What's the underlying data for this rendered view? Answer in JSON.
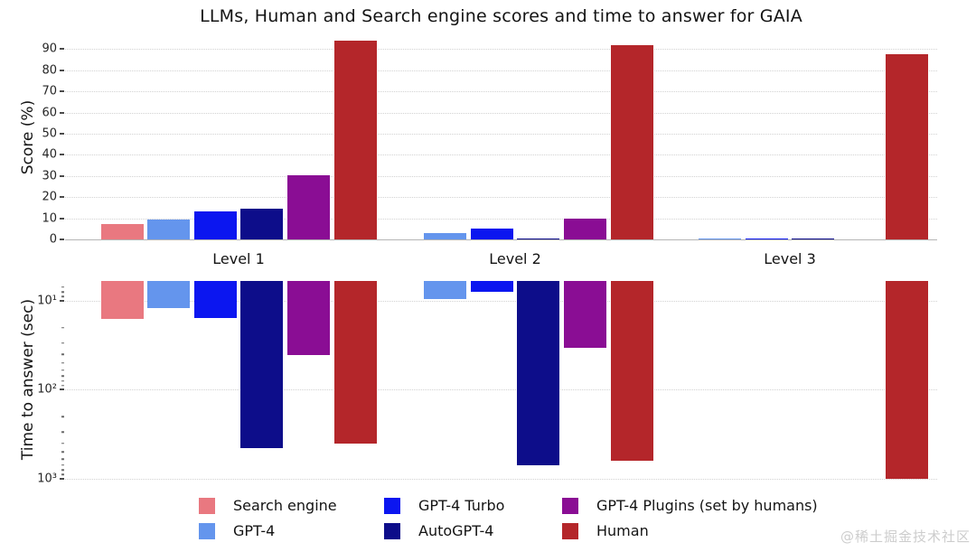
{
  "title": "LLMs, Human and Search engine scores and time to answer for GAIA",
  "watermark": {
    "text": "@稀土掘金技术社区"
  },
  "chart_data": [
    {
      "type": "bar",
      "title": "LLMs, Human and Search engine scores and time to answer for GAIA",
      "ylabel": "Score (%)",
      "xlabel": "",
      "categories": [
        "Level 1",
        "Level 2",
        "Level 3"
      ],
      "ylim": [
        0,
        97
      ],
      "yticks": [
        0,
        10,
        20,
        30,
        40,
        50,
        60,
        70,
        80,
        90
      ],
      "grid": true,
      "series": [
        {
          "name": "Search engine",
          "color": "#e97880",
          "values": [
            7.4,
            0,
            0
          ]
        },
        {
          "name": "GPT-4",
          "color": "#6495ed",
          "values": [
            9.3,
            3.1,
            0.3
          ]
        },
        {
          "name": "GPT-4 Turbo",
          "color": "#0b16f0",
          "values": [
            13.2,
            5.3,
            0.3
          ]
        },
        {
          "name": "AutoGPT-4",
          "color": "#0d0d8a",
          "values": [
            14.4,
            0.5,
            0.3
          ]
        },
        {
          "name": "GPT-4 Plugins (set by humans)",
          "color": "#8a0d94",
          "values": [
            30.3,
            9.7,
            0
          ]
        },
        {
          "name": "Human",
          "color": "#b4262a",
          "values": [
            94,
            92,
            87.5
          ]
        }
      ]
    },
    {
      "type": "bar",
      "title": "",
      "ylabel": "Time to answer (sec)",
      "xlabel": "",
      "categories": [
        "Level 1",
        "Level 2",
        "Level 3"
      ],
      "yscale": "log-inverted",
      "ylim": [
        6,
        1000
      ],
      "yticks": [
        {
          "value": 10,
          "label": "10¹"
        },
        {
          "value": 100,
          "label": "10²"
        },
        {
          "value": 1000,
          "label": "10³"
        }
      ],
      "grid": true,
      "series": [
        {
          "name": "Search engine",
          "color": "#e97880",
          "values": [
            16,
            null,
            null
          ]
        },
        {
          "name": "GPT-4",
          "color": "#6495ed",
          "values": [
            12,
            9.5,
            null
          ]
        },
        {
          "name": "GPT-4 Turbo",
          "color": "#0b16f0",
          "values": [
            15.5,
            8,
            null
          ]
        },
        {
          "name": "AutoGPT-4",
          "color": "#0d0d8a",
          "values": [
            450,
            700,
            null
          ]
        },
        {
          "name": "GPT-4 Plugins (set by humans)",
          "color": "#8a0d94",
          "values": [
            41,
            34,
            null
          ]
        },
        {
          "name": "Human",
          "color": "#b4262a",
          "values": [
            400,
            620,
            1000
          ]
        }
      ]
    }
  ],
  "legend": {
    "columns": [
      [
        "Search engine",
        "GPT-4"
      ],
      [
        "GPT-4 Turbo",
        "AutoGPT-4"
      ],
      [
        "GPT-4 Plugins (set by humans)",
        "Human"
      ]
    ]
  }
}
